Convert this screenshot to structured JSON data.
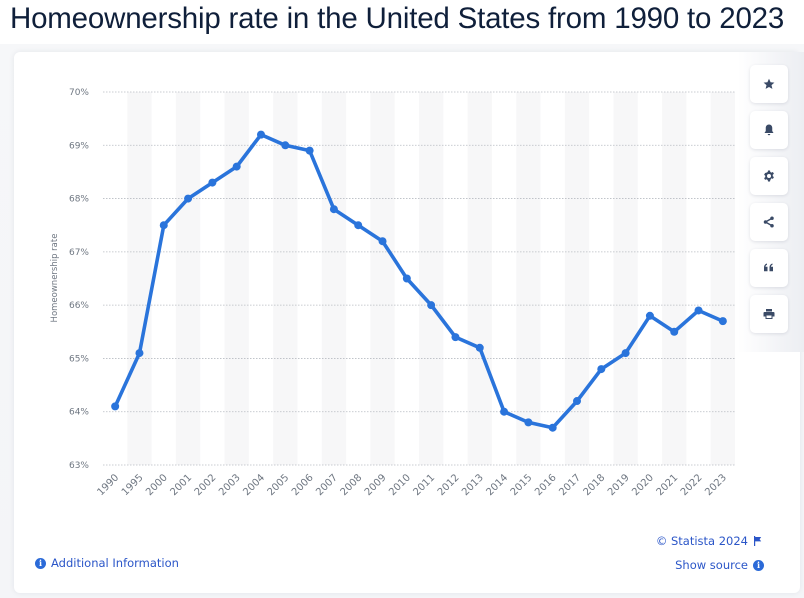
{
  "page": {
    "title": "Homeownership rate in the United States from 1990 to 2023"
  },
  "toolbar": {
    "buttons": [
      {
        "name": "favorite",
        "icon": "star-icon"
      },
      {
        "name": "notify",
        "icon": "bell-icon"
      },
      {
        "name": "settings",
        "icon": "gear-icon"
      },
      {
        "name": "share",
        "icon": "share-icon"
      },
      {
        "name": "cite",
        "icon": "quote-icon"
      },
      {
        "name": "print",
        "icon": "print-icon"
      }
    ]
  },
  "footer": {
    "additional_info": "Additional Information",
    "copyright": "© Statista 2024",
    "show_source": "Show source"
  },
  "colors": {
    "line": "#2a74db",
    "link": "#2b56c8",
    "grid": "#b8bcc2",
    "band": "#f7f7f8"
  },
  "chart_data": {
    "type": "line",
    "title": "Homeownership rate in the United States from 1990 to 2023",
    "xlabel": "",
    "ylabel": "Homeownership rate",
    "categories": [
      "1990",
      "1995",
      "2000",
      "2001",
      "2002",
      "2003",
      "2004",
      "2005",
      "2006",
      "2007",
      "2008",
      "2009",
      "2010",
      "2011",
      "2012",
      "2013",
      "2014",
      "2015",
      "2016",
      "2017",
      "2018",
      "2019",
      "2020",
      "2021",
      "2022",
      "2023"
    ],
    "series": [
      {
        "name": "Homeownership rate",
        "values": [
          64.1,
          65.1,
          67.5,
          68.0,
          68.3,
          68.6,
          69.2,
          69.0,
          68.9,
          67.8,
          67.5,
          67.2,
          66.5,
          66.0,
          65.4,
          65.2,
          64.0,
          63.8,
          63.7,
          64.2,
          64.8,
          65.1,
          65.8,
          65.5,
          65.9,
          65.7
        ]
      }
    ],
    "ylim": [
      63,
      70
    ],
    "yticks": [
      63,
      64,
      65,
      66,
      67,
      68,
      69,
      70
    ],
    "ytick_labels": [
      "63%",
      "64%",
      "65%",
      "66%",
      "67%",
      "68%",
      "69%",
      "70%"
    ],
    "grid": true,
    "legend": "none"
  }
}
